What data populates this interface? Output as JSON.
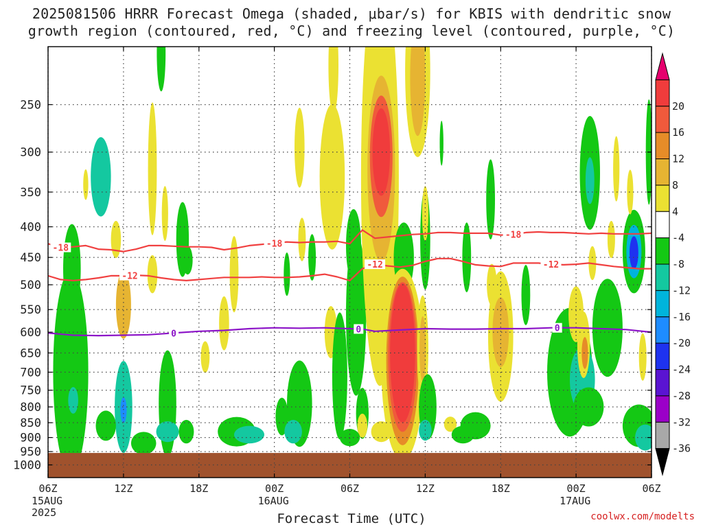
{
  "title_line1": "2025081506 HRRR Forecast Omega (shaded, μbar/s) for KBIS with dendritic snow",
  "title_line2": "growth region (contoured, red, °C) and freezing level (contoured, purple, °C)",
  "credit": "coolwx.com/modelts",
  "chart_data": {
    "type": "heatmap",
    "xlabel": "Forecast Time (UTC)",
    "ylabel": "",
    "x_unit": "forecast hour (0 = 2025-08-15 06Z)",
    "xlim": [
      0,
      48
    ],
    "ylim": [
      1050,
      200
    ],
    "y_scale": "log-pressure (hPa, inverted)",
    "grid": true,
    "x_ticks": [
      {
        "x": 0,
        "label": "06Z",
        "sub": [
          "15AUG",
          "2025"
        ]
      },
      {
        "x": 6,
        "label": "12Z",
        "sub": []
      },
      {
        "x": 12,
        "label": "18Z",
        "sub": []
      },
      {
        "x": 18,
        "label": "00Z",
        "sub": [
          "16AUG"
        ]
      },
      {
        "x": 24,
        "label": "06Z",
        "sub": []
      },
      {
        "x": 30,
        "label": "12Z",
        "sub": []
      },
      {
        "x": 36,
        "label": "18Z",
        "sub": []
      },
      {
        "x": 42,
        "label": "00Z",
        "sub": [
          "17AUG"
        ]
      },
      {
        "x": 48,
        "label": "06Z",
        "sub": []
      }
    ],
    "y_ticks": [
      250,
      300,
      350,
      400,
      450,
      500,
      550,
      600,
      650,
      700,
      750,
      800,
      850,
      900,
      950,
      1000
    ],
    "ground_pressure": 955,
    "ground_color": "#a0522d",
    "colorbar": {
      "levels": [
        -36,
        -32,
        -28,
        -24,
        -20,
        -16,
        -12,
        -8,
        -4,
        4,
        8,
        12,
        16,
        20
      ],
      "colors": [
        "#000000",
        "#a8a8a8",
        "#9b00c8",
        "#5a14d2",
        "#1e32f0",
        "#1e8cff",
        "#00b4dc",
        "#14c8a0",
        "#14c814",
        "#ffffff",
        "#ebe132",
        "#e6b432",
        "#e68c28",
        "#f05a3c",
        "#f03c3c",
        "#e6006e"
      ]
    },
    "omega_cells": [
      {
        "x": 1.8,
        "p": 700,
        "rx": 1.4,
        "rp": 260,
        "v": -8
      },
      {
        "x": 2.0,
        "p": 780,
        "rx": 0.4,
        "rp": 40,
        "v": -12
      },
      {
        "x": 1.9,
        "p": 470,
        "rx": 0.7,
        "rp": 80,
        "v": -6
      },
      {
        "x": 4.2,
        "p": 330,
        "rx": 0.8,
        "rp": 50,
        "v": -9
      },
      {
        "x": 4.2,
        "p": 345,
        "rx": 0.3,
        "rp": 20,
        "v": -12
      },
      {
        "x": 3.0,
        "p": 340,
        "rx": 0.2,
        "rp": 20,
        "v": 5
      },
      {
        "x": 5.4,
        "p": 420,
        "rx": 0.4,
        "rp": 30,
        "v": 5
      },
      {
        "x": 6.0,
        "p": 540,
        "rx": 0.6,
        "rp": 70,
        "v": 9
      },
      {
        "x": 6.0,
        "p": 800,
        "rx": 0.7,
        "rp": 140,
        "v": -12
      },
      {
        "x": 6.0,
        "p": 810,
        "rx": 0.25,
        "rp": 40,
        "v": -18
      },
      {
        "x": 4.6,
        "p": 860,
        "rx": 0.8,
        "rp": 50,
        "v": -7
      },
      {
        "x": 8.3,
        "p": 320,
        "rx": 0.35,
        "rp": 80,
        "v": 5
      },
      {
        "x": 8.3,
        "p": 480,
        "rx": 0.4,
        "rp": 35,
        "v": 5
      },
      {
        "x": 7.6,
        "p": 920,
        "rx": 1.0,
        "rp": 40,
        "v": -7
      },
      {
        "x": 9.5,
        "p": 790,
        "rx": 0.7,
        "rp": 160,
        "v": -8
      },
      {
        "x": 9.5,
        "p": 880,
        "rx": 0.9,
        "rp": 35,
        "v": -12
      },
      {
        "x": 11.0,
        "p": 880,
        "rx": 0.6,
        "rp": 40,
        "v": -8
      },
      {
        "x": 9.0,
        "p": 205,
        "rx": 0.35,
        "rp": 30,
        "v": -7
      },
      {
        "x": 10.7,
        "p": 420,
        "rx": 0.5,
        "rp": 60,
        "v": -7
      },
      {
        "x": 11.1,
        "p": 455,
        "rx": 0.4,
        "rp": 25,
        "v": -8
      },
      {
        "x": 9.3,
        "p": 380,
        "rx": 0.25,
        "rp": 40,
        "v": 5
      },
      {
        "x": 12.5,
        "p": 660,
        "rx": 0.35,
        "rp": 40,
        "v": 5
      },
      {
        "x": 14.8,
        "p": 480,
        "rx": 0.35,
        "rp": 70,
        "v": 5
      },
      {
        "x": 14.0,
        "p": 580,
        "rx": 0.4,
        "rp": 60,
        "v": 5
      },
      {
        "x": 15.0,
        "p": 880,
        "rx": 1.5,
        "rp": 50,
        "v": -7
      },
      {
        "x": 16.0,
        "p": 890,
        "rx": 1.2,
        "rp": 30,
        "v": -10
      },
      {
        "x": 18.6,
        "p": 830,
        "rx": 0.5,
        "rp": 60,
        "v": -7
      },
      {
        "x": 19.0,
        "p": 480,
        "rx": 0.25,
        "rp": 40,
        "v": -7
      },
      {
        "x": 20.0,
        "p": 790,
        "rx": 1.0,
        "rp": 130,
        "v": -7
      },
      {
        "x": 19.5,
        "p": 880,
        "rx": 0.7,
        "rp": 40,
        "v": -10
      },
      {
        "x": 20.2,
        "p": 420,
        "rx": 0.3,
        "rp": 35,
        "v": 5
      },
      {
        "x": 21.0,
        "p": 450,
        "rx": 0.3,
        "rp": 40,
        "v": -6
      },
      {
        "x": 20.0,
        "p": 295,
        "rx": 0.4,
        "rp": 45,
        "v": 4.5
      },
      {
        "x": 22.7,
        "p": 215,
        "rx": 0.4,
        "rp": 40,
        "v": 5
      },
      {
        "x": 22.6,
        "p": 330,
        "rx": 1.0,
        "rp": 90,
        "v": 5
      },
      {
        "x": 22.5,
        "p": 600,
        "rx": 0.5,
        "rp": 60,
        "v": 5
      },
      {
        "x": 23.2,
        "p": 710,
        "rx": 0.6,
        "rp": 170,
        "v": -8
      },
      {
        "x": 24.5,
        "p": 560,
        "rx": 0.8,
        "rp": 170,
        "v": -8
      },
      {
        "x": 24.3,
        "p": 430,
        "rx": 0.6,
        "rp": 60,
        "v": -6
      },
      {
        "x": 25.0,
        "p": 820,
        "rx": 0.5,
        "rp": 80,
        "v": -8
      },
      {
        "x": 25.0,
        "p": 860,
        "rx": 0.4,
        "rp": 40,
        "v": 5
      },
      {
        "x": 24.0,
        "p": 900,
        "rx": 0.8,
        "rp": 30,
        "v": -7
      },
      {
        "x": 26.4,
        "p": 330,
        "rx": 1.5,
        "rp": 220,
        "v": 5
      },
      {
        "x": 26.5,
        "p": 320,
        "rx": 1.1,
        "rp": 110,
        "v": 11
      },
      {
        "x": 26.5,
        "p": 305,
        "rx": 0.9,
        "rp": 70,
        "v": 16
      },
      {
        "x": 26.5,
        "p": 300,
        "rx": 0.7,
        "rp": 50,
        "v": 22
      },
      {
        "x": 28.3,
        "p": 450,
        "rx": 0.8,
        "rp": 60,
        "v": -7
      },
      {
        "x": 28.2,
        "p": 680,
        "rx": 1.7,
        "rp": 240,
        "v": 6
      },
      {
        "x": 28.2,
        "p": 670,
        "rx": 1.3,
        "rp": 210,
        "v": 12
      },
      {
        "x": 28.2,
        "p": 660,
        "rx": 1.15,
        "rp": 185,
        "v": 17
      },
      {
        "x": 28.2,
        "p": 650,
        "rx": 1.0,
        "rp": 170,
        "v": 22
      },
      {
        "x": 26.5,
        "p": 880,
        "rx": 0.8,
        "rp": 35,
        "v": 5
      },
      {
        "x": 29.4,
        "p": 220,
        "rx": 1.0,
        "rp": 70,
        "v": 6
      },
      {
        "x": 29.4,
        "p": 225,
        "rx": 0.6,
        "rp": 50,
        "v": 11
      },
      {
        "x": 30.0,
        "p": 420,
        "rx": 0.4,
        "rp": 80,
        "v": -7
      },
      {
        "x": 30.0,
        "p": 380,
        "rx": 0.25,
        "rp": 40,
        "v": 5
      },
      {
        "x": 29.8,
        "p": 640,
        "rx": 0.45,
        "rp": 130,
        "v": 6
      },
      {
        "x": 29.8,
        "p": 640,
        "rx": 0.25,
        "rp": 80,
        "v": 11
      },
      {
        "x": 30.2,
        "p": 800,
        "rx": 0.7,
        "rp": 100,
        "v": -8
      },
      {
        "x": 30.0,
        "p": 875,
        "rx": 0.5,
        "rp": 35,
        "v": -10
      },
      {
        "x": 32.0,
        "p": 855,
        "rx": 0.5,
        "rp": 25,
        "v": 5
      },
      {
        "x": 31.3,
        "p": 290,
        "rx": 0.15,
        "rp": 25,
        "v": -6
      },
      {
        "x": 33.3,
        "p": 450,
        "rx": 0.35,
        "rp": 60,
        "v": -7
      },
      {
        "x": 34.0,
        "p": 860,
        "rx": 1.2,
        "rp": 45,
        "v": -8
      },
      {
        "x": 33.0,
        "p": 890,
        "rx": 0.9,
        "rp": 30,
        "v": -7
      },
      {
        "x": 35.2,
        "p": 360,
        "rx": 0.35,
        "rp": 55,
        "v": -7
      },
      {
        "x": 36.0,
        "p": 610,
        "rx": 1.0,
        "rp": 150,
        "v": 5
      },
      {
        "x": 36.0,
        "p": 600,
        "rx": 0.65,
        "rp": 80,
        "v": 9
      },
      {
        "x": 35.3,
        "p": 500,
        "rx": 0.4,
        "rp": 40,
        "v": 5
      },
      {
        "x": 38.0,
        "p": 520,
        "rx": 0.35,
        "rp": 60,
        "v": -7
      },
      {
        "x": 41.5,
        "p": 700,
        "rx": 1.8,
        "rp": 170,
        "v": -8
      },
      {
        "x": 42.5,
        "p": 720,
        "rx": 1.0,
        "rp": 90,
        "v": -10
      },
      {
        "x": 43.0,
        "p": 800,
        "rx": 1.2,
        "rp": 60,
        "v": -8
      },
      {
        "x": 42.0,
        "p": 560,
        "rx": 0.6,
        "rp": 60,
        "v": 6
      },
      {
        "x": 42.6,
        "p": 630,
        "rx": 0.5,
        "rp": 80,
        "v": 7
      },
      {
        "x": 42.7,
        "p": 650,
        "rx": 0.25,
        "rp": 40,
        "v": 15
      },
      {
        "x": 43.1,
        "p": 325,
        "rx": 0.8,
        "rp": 70,
        "v": -8
      },
      {
        "x": 43.1,
        "p": 335,
        "rx": 0.35,
        "rp": 30,
        "v": -12
      },
      {
        "x": 43.3,
        "p": 460,
        "rx": 0.3,
        "rp": 30,
        "v": 5
      },
      {
        "x": 44.5,
        "p": 590,
        "rx": 1.2,
        "rp": 110,
        "v": -8
      },
      {
        "x": 44.8,
        "p": 420,
        "rx": 0.3,
        "rp": 30,
        "v": 5
      },
      {
        "x": 45.2,
        "p": 320,
        "rx": 0.25,
        "rp": 40,
        "v": 5
      },
      {
        "x": 46.6,
        "p": 440,
        "rx": 0.9,
        "rp": 70,
        "v": -8
      },
      {
        "x": 46.6,
        "p": 440,
        "rx": 0.6,
        "rp": 45,
        "v": -14
      },
      {
        "x": 46.6,
        "p": 442,
        "rx": 0.35,
        "rp": 28,
        "v": -22
      },
      {
        "x": 47.3,
        "p": 660,
        "rx": 0.3,
        "rp": 60,
        "v": 5
      },
      {
        "x": 47.0,
        "p": 860,
        "rx": 1.3,
        "rp": 70,
        "v": -8
      },
      {
        "x": 47.5,
        "p": 900,
        "rx": 0.8,
        "rp": 45,
        "v": -12
      },
      {
        "x": 47.8,
        "p": 300,
        "rx": 0.25,
        "rp": 60,
        "v": -7
      },
      {
        "x": 46.3,
        "p": 350,
        "rx": 0.25,
        "rp": 30,
        "v": 5
      }
    ],
    "contours": [
      {
        "name": "-18",
        "color": "#f04040",
        "points": [
          [
            0,
            427
          ],
          [
            1,
            433
          ],
          [
            2,
            432
          ],
          [
            3,
            430
          ],
          [
            4,
            436
          ],
          [
            5,
            437
          ],
          [
            6,
            440
          ],
          [
            7,
            436
          ],
          [
            8,
            430
          ],
          [
            9,
            430
          ],
          [
            10,
            431
          ],
          [
            11,
            432
          ],
          [
            12,
            432
          ],
          [
            13,
            433
          ],
          [
            14,
            437
          ],
          [
            15,
            434
          ],
          [
            16,
            430
          ],
          [
            17,
            428
          ],
          [
            18,
            426
          ],
          [
            19,
            424
          ],
          [
            20,
            425
          ],
          [
            21,
            424
          ],
          [
            22,
            424
          ],
          [
            23,
            423
          ],
          [
            24,
            427
          ],
          [
            25,
            405
          ],
          [
            26,
            418
          ],
          [
            27,
            416
          ],
          [
            28,
            414
          ],
          [
            29,
            412
          ],
          [
            30,
            411
          ],
          [
            31,
            409
          ],
          [
            32,
            409
          ],
          [
            33,
            410
          ],
          [
            34,
            410
          ],
          [
            35,
            410
          ],
          [
            36,
            413
          ],
          [
            37,
            412
          ],
          [
            38,
            409
          ],
          [
            39,
            408
          ],
          [
            40,
            409
          ],
          [
            41,
            409
          ],
          [
            42,
            410
          ],
          [
            43,
            411
          ],
          [
            44,
            410
          ],
          [
            45,
            411
          ],
          [
            46,
            411
          ],
          [
            47,
            411
          ],
          [
            48,
            410
          ]
        ],
        "labels": [
          {
            "x": 1.0,
            "text": "-18"
          },
          {
            "x": 18.0,
            "text": "-18"
          },
          {
            "x": 37.0,
            "text": "-18"
          }
        ]
      },
      {
        "name": "-12",
        "color": "#f04040",
        "points": [
          [
            0,
            483
          ],
          [
            1,
            490
          ],
          [
            2,
            492
          ],
          [
            3,
            490
          ],
          [
            4,
            487
          ],
          [
            5,
            483
          ],
          [
            6,
            483
          ],
          [
            7,
            482
          ],
          [
            8,
            483
          ],
          [
            9,
            487
          ],
          [
            10,
            490
          ],
          [
            11,
            492
          ],
          [
            12,
            490
          ],
          [
            13,
            488
          ],
          [
            14,
            486
          ],
          [
            15,
            486
          ],
          [
            16,
            486
          ],
          [
            17,
            485
          ],
          [
            18,
            486
          ],
          [
            19,
            486
          ],
          [
            20,
            485
          ],
          [
            21,
            483
          ],
          [
            22,
            480
          ],
          [
            23,
            485
          ],
          [
            24,
            492
          ],
          [
            25,
            470
          ],
          [
            26,
            462
          ],
          [
            27,
            465
          ],
          [
            28,
            467
          ],
          [
            29,
            464
          ],
          [
            30,
            457
          ],
          [
            31,
            452
          ],
          [
            32,
            452
          ],
          [
            33,
            457
          ],
          [
            34,
            463
          ],
          [
            35,
            465
          ],
          [
            36,
            466
          ],
          [
            37,
            460
          ],
          [
            38,
            460
          ],
          [
            39,
            460
          ],
          [
            40,
            462
          ],
          [
            41,
            463
          ],
          [
            42,
            462
          ],
          [
            43,
            460
          ],
          [
            44,
            463
          ],
          [
            45,
            466
          ],
          [
            46,
            468
          ],
          [
            47,
            470
          ],
          [
            48,
            470
          ]
        ],
        "labels": [
          {
            "x": 6.5,
            "text": "-12"
          },
          {
            "x": 26.0,
            "text": "-12"
          },
          {
            "x": 40.0,
            "text": "-12"
          }
        ]
      },
      {
        "name": "0",
        "color": "#8c14c8",
        "points": [
          [
            0,
            602
          ],
          [
            2,
            607
          ],
          [
            4,
            608
          ],
          [
            6,
            607
          ],
          [
            8,
            606
          ],
          [
            10,
            602
          ],
          [
            12,
            598
          ],
          [
            14,
            596
          ],
          [
            16,
            592
          ],
          [
            18,
            590
          ],
          [
            20,
            591
          ],
          [
            22,
            590
          ],
          [
            24,
            592
          ],
          [
            25,
            593
          ],
          [
            26,
            598
          ],
          [
            28,
            595
          ],
          [
            30,
            592
          ],
          [
            32,
            593
          ],
          [
            34,
            593
          ],
          [
            36,
            592
          ],
          [
            38,
            592
          ],
          [
            40,
            590
          ],
          [
            42,
            590
          ],
          [
            44,
            592
          ],
          [
            46,
            594
          ],
          [
            48,
            600
          ]
        ],
        "labels": [
          {
            "x": 10.0,
            "text": "0"
          },
          {
            "x": 24.7,
            "text": "0"
          },
          {
            "x": 40.5,
            "text": "0"
          }
        ]
      }
    ]
  }
}
